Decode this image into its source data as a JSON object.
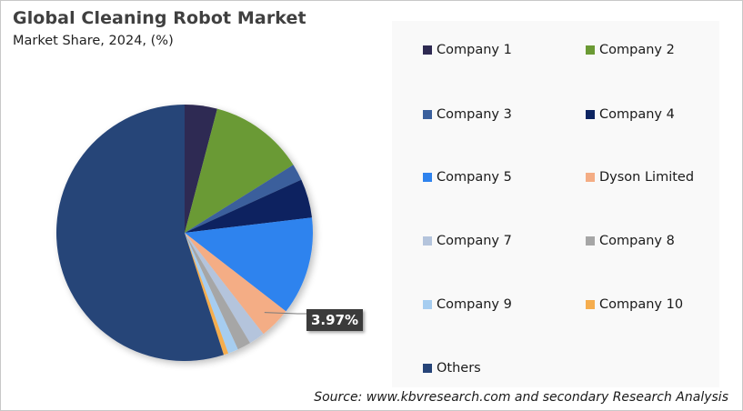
{
  "header": {
    "title": "Global Cleaning Robot Market",
    "subtitle": "Market Share, 2024, (%)"
  },
  "source": "Source: www.kbvresearch.com and secondary Research Analysis",
  "callout": {
    "label": "3.97%",
    "target": "Dyson Limited"
  },
  "legend": [
    {
      "label": "Company 1",
      "color": "#2e2a52"
    },
    {
      "label": "Company 2",
      "color": "#6b9a34"
    },
    {
      "label": "Company 3",
      "color": "#3a5f9c"
    },
    {
      "label": "Company 4",
      "color": "#0c2461"
    },
    {
      "label": "Company 5",
      "color": "#2f83ee"
    },
    {
      "label": "Dyson Limited",
      "color": "#f4ad85"
    },
    {
      "label": "Company 7",
      "color": "#b4c4dc"
    },
    {
      "label": "Company 8",
      "color": "#a6a6a6"
    },
    {
      "label": "Company 9",
      "color": "#a6cdf0"
    },
    {
      "label": "Company 10",
      "color": "#f5ad4e"
    },
    {
      "label": "Others",
      "color": "#264478"
    }
  ],
  "chart_data": {
    "type": "pie",
    "title": "Global Cleaning Robot Market",
    "subtitle": "Market Share, 2024, (%)",
    "categories": [
      "Company 1",
      "Company 2",
      "Company 3",
      "Company 4",
      "Company 5",
      "Dyson Limited",
      "Company 7",
      "Company 8",
      "Company 9",
      "Company 10",
      "Others"
    ],
    "values": [
      4.1,
      12.0,
      2.1,
      4.9,
      12.4,
      3.97,
      2.0,
      1.7,
      1.3,
      0.6,
      54.93
    ],
    "colors": [
      "#2e2a52",
      "#6b9a34",
      "#3a5f9c",
      "#0c2461",
      "#2f83ee",
      "#f4ad85",
      "#b4c4dc",
      "#a6a6a6",
      "#a6cdf0",
      "#f5ad4e",
      "#264478"
    ],
    "data_labels": {
      "Dyson Limited": "3.97%"
    },
    "start_angle": "12 o'clock",
    "direction": "clockwise",
    "legend_position": "right",
    "source": "Source: www.kbvresearch.com and secondary Research Analysis"
  }
}
